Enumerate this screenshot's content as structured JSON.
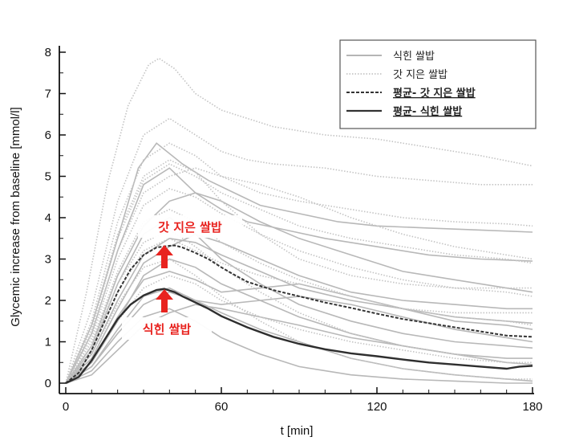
{
  "chart_data": {
    "type": "line",
    "title": "",
    "xlabel": "t [min]",
    "ylabel": "Glycemic increase from baseline [mmol/l]",
    "xlim": [
      0,
      180
    ],
    "ylim": [
      0,
      8
    ],
    "xticks": [
      0,
      60,
      120,
      180
    ],
    "yticks": [
      0,
      1,
      2,
      3,
      4,
      5,
      6,
      7,
      8
    ],
    "legend_position": "top-right",
    "legend": [
      {
        "label": "식힌 쌀밥",
        "style": "solid-gray"
      },
      {
        "label": "갓 지은 쌀밥",
        "style": "dotted-gray"
      },
      {
        "label": "평균- 갓 지은 쌀밥",
        "style": "dashed-dark"
      },
      {
        "label": "평균- 식힌 쌀밥",
        "style": "solid-dark"
      }
    ],
    "series": [
      {
        "name": "평균- 갓 지은 쌀밥",
        "x": [
          0,
          5,
          10,
          15,
          20,
          25,
          30,
          35,
          40,
          42,
          45,
          50,
          55,
          60,
          65,
          70,
          75,
          80,
          90,
          100,
          110,
          120,
          130,
          140,
          150,
          160,
          170,
          180
        ],
        "values": [
          0,
          0.25,
          0.8,
          1.5,
          2.2,
          2.75,
          3.1,
          3.28,
          3.32,
          3.33,
          3.28,
          3.15,
          3.0,
          2.8,
          2.62,
          2.45,
          2.35,
          2.25,
          2.1,
          1.95,
          1.82,
          1.68,
          1.55,
          1.45,
          1.35,
          1.25,
          1.15,
          1.12
        ]
      },
      {
        "name": "평균- 식힌 쌀밥",
        "x": [
          0,
          5,
          10,
          15,
          20,
          25,
          30,
          35,
          38,
          42,
          45,
          50,
          55,
          60,
          70,
          80,
          90,
          100,
          110,
          120,
          130,
          140,
          150,
          160,
          170,
          175,
          180
        ],
        "values": [
          0,
          0.15,
          0.55,
          1.05,
          1.55,
          1.9,
          2.12,
          2.25,
          2.28,
          2.2,
          2.1,
          1.95,
          1.8,
          1.62,
          1.35,
          1.12,
          0.95,
          0.82,
          0.72,
          0.65,
          0.57,
          0.5,
          0.45,
          0.4,
          0.35,
          0.4,
          0.42
        ]
      }
    ],
    "individual_curves": {
      "식힌 쌀밥": [
        {
          "x": [
            0,
            10,
            20,
            28,
            35,
            45,
            55,
            65,
            75,
            90,
            105,
            120,
            140,
            160,
            180
          ],
          "values": [
            0,
            1.4,
            3.5,
            5.2,
            5.8,
            5.3,
            4.9,
            4.6,
            4.3,
            4.1,
            3.9,
            3.8,
            3.75,
            3.7,
            3.65
          ]
        },
        {
          "x": [
            0,
            10,
            20,
            30,
            40,
            50,
            60,
            70,
            85,
            100,
            120,
            140,
            160,
            180
          ],
          "values": [
            0,
            1.2,
            3.2,
            4.8,
            5.2,
            4.6,
            4.2,
            3.9,
            3.7,
            3.5,
            3.3,
            3.1,
            3.0,
            2.95
          ]
        },
        {
          "x": [
            0,
            10,
            20,
            30,
            40,
            50,
            60,
            75,
            90,
            110,
            130,
            150,
            170,
            180
          ],
          "values": [
            0,
            0.9,
            2.6,
            3.8,
            4.4,
            4.6,
            4.4,
            3.9,
            3.5,
            3.1,
            2.7,
            2.5,
            2.3,
            2.2
          ]
        },
        {
          "x": [
            0,
            10,
            20,
            30,
            40,
            50,
            60,
            75,
            90,
            110,
            130,
            150,
            170,
            180
          ],
          "values": [
            0,
            0.7,
            2.0,
            3.1,
            3.5,
            3.4,
            3.1,
            2.7,
            2.3,
            2.0,
            1.8,
            1.5,
            1.4,
            1.3
          ]
        },
        {
          "x": [
            0,
            10,
            20,
            30,
            40,
            50,
            60,
            75,
            90,
            110,
            130,
            150,
            170,
            180
          ],
          "values": [
            0,
            0.5,
            1.5,
            2.6,
            3.0,
            2.8,
            2.4,
            2.0,
            1.6,
            1.2,
            0.9,
            0.7,
            0.5,
            0.45
          ]
        },
        {
          "x": [
            0,
            10,
            20,
            30,
            40,
            50,
            60,
            75,
            90,
            110,
            130,
            150,
            170,
            180
          ],
          "values": [
            0,
            0.4,
            1.3,
            2.1,
            2.3,
            2.0,
            1.7,
            1.3,
            1.0,
            0.6,
            0.35,
            0.2,
            0.1,
            0.05
          ]
        },
        {
          "x": [
            0,
            10,
            20,
            30,
            40,
            50,
            60,
            75,
            90,
            110,
            130,
            150,
            170,
            180
          ],
          "values": [
            0,
            0.3,
            1.0,
            1.6,
            1.8,
            1.5,
            1.1,
            0.7,
            0.4,
            0.2,
            0.1,
            0.05,
            0.0,
            0.0
          ]
        },
        {
          "x": [
            0,
            10,
            20,
            30,
            40,
            50,
            60,
            75,
            90,
            110,
            130,
            150,
            170,
            180
          ],
          "values": [
            0,
            0.6,
            1.8,
            2.9,
            3.3,
            3.6,
            3.4,
            3.0,
            2.6,
            2.2,
            2.0,
            1.9,
            1.8,
            1.8
          ]
        },
        {
          "x": [
            0,
            10,
            20,
            30,
            40,
            50,
            60,
            75,
            90,
            110,
            130,
            150,
            170,
            180
          ],
          "values": [
            0,
            0.8,
            2.4,
            3.6,
            4.0,
            3.6,
            3.0,
            2.4,
            1.9,
            1.5,
            1.2,
            1.0,
            0.9,
            0.85
          ]
        },
        {
          "x": [
            0,
            10,
            20,
            30,
            40,
            50,
            60,
            75,
            90,
            110,
            130,
            150,
            170,
            180
          ],
          "values": [
            0,
            0.2,
            0.8,
            1.4,
            1.7,
            1.9,
            1.8,
            1.6,
            1.4,
            1.1,
            0.9,
            0.7,
            0.6,
            0.6
          ]
        },
        {
          "x": [
            0,
            10,
            20,
            30,
            40,
            50,
            60,
            75,
            90,
            110,
            130,
            150,
            170,
            180
          ],
          "values": [
            0,
            0.5,
            1.6,
            2.5,
            2.7,
            2.5,
            2.2,
            2.3,
            2.4,
            2.1,
            1.8,
            1.6,
            1.5,
            1.45
          ]
        },
        {
          "x": [
            0,
            10,
            20,
            30,
            40,
            50,
            60,
            75,
            90,
            110,
            130,
            150,
            170,
            180
          ],
          "values": [
            0,
            0.4,
            1.2,
            1.9,
            2.2,
            2.0,
            1.9,
            2.0,
            2.1,
            1.9,
            1.6,
            1.3,
            1.1,
            1.0
          ]
        }
      ],
      "갓 지은 쌀밥": [
        {
          "x": [
            0,
            8,
            16,
            24,
            32,
            36,
            42,
            50,
            60,
            70,
            80,
            100,
            120,
            140,
            160,
            180
          ],
          "values": [
            0,
            2.2,
            4.8,
            6.7,
            7.7,
            7.85,
            7.6,
            7.0,
            6.6,
            6.4,
            6.2,
            6.0,
            5.9,
            5.7,
            5.5,
            5.25
          ]
        },
        {
          "x": [
            0,
            10,
            20,
            30,
            40,
            50,
            60,
            70,
            80,
            100,
            120,
            140,
            160,
            180
          ],
          "values": [
            0,
            1.8,
            4.4,
            6.0,
            6.4,
            6.0,
            5.6,
            5.4,
            5.3,
            5.2,
            5.0,
            4.9,
            4.8,
            4.8
          ]
        },
        {
          "x": [
            0,
            10,
            20,
            30,
            40,
            50,
            60,
            75,
            90,
            110,
            130,
            150,
            170,
            180
          ],
          "values": [
            0,
            1.5,
            3.9,
            5.4,
            5.8,
            5.5,
            5.0,
            4.6,
            4.4,
            4.2,
            4.0,
            3.9,
            3.85,
            3.8
          ]
        },
        {
          "x": [
            0,
            10,
            20,
            30,
            40,
            50,
            60,
            75,
            90,
            110,
            130,
            150,
            170,
            180
          ],
          "values": [
            0,
            1.3,
            3.5,
            4.9,
            5.3,
            5.0,
            4.6,
            4.2,
            3.8,
            3.5,
            3.3,
            3.1,
            3.0,
            2.9
          ]
        },
        {
          "x": [
            0,
            10,
            20,
            30,
            40,
            50,
            60,
            75,
            90,
            110,
            130,
            150,
            170,
            180
          ],
          "values": [
            0,
            1.1,
            3.0,
            4.3,
            4.7,
            4.5,
            4.1,
            3.6,
            3.2,
            2.8,
            2.5,
            2.3,
            2.2,
            2.1
          ]
        },
        {
          "x": [
            0,
            10,
            20,
            30,
            40,
            50,
            60,
            75,
            90,
            110,
            130,
            150,
            170,
            180
          ],
          "values": [
            0,
            1.0,
            2.7,
            3.9,
            4.2,
            3.9,
            3.4,
            2.9,
            2.5,
            2.1,
            1.8,
            1.6,
            1.5,
            1.4
          ]
        },
        {
          "x": [
            0,
            10,
            20,
            30,
            40,
            50,
            60,
            75,
            90,
            110,
            130,
            150,
            170,
            180
          ],
          "values": [
            0,
            0.9,
            2.4,
            3.4,
            3.7,
            3.3,
            2.8,
            2.2,
            1.7,
            1.2,
            0.9,
            0.7,
            0.5,
            0.45
          ]
        },
        {
          "x": [
            0,
            10,
            20,
            30,
            40,
            50,
            60,
            75,
            90,
            110,
            130,
            150,
            170,
            180
          ],
          "values": [
            0,
            0.7,
            1.9,
            2.8,
            3.0,
            2.6,
            2.1,
            1.5,
            1.0,
            0.6,
            0.35,
            0.2,
            0.1,
            0.1
          ]
        },
        {
          "x": [
            0,
            10,
            20,
            30,
            40,
            50,
            60,
            75,
            90,
            110,
            130,
            150,
            170,
            180
          ],
          "values": [
            0,
            1.2,
            3.2,
            4.6,
            5.0,
            5.2,
            5.0,
            4.8,
            4.5,
            4.0,
            3.6,
            3.3,
            3.1,
            3.0
          ]
        },
        {
          "x": [
            0,
            10,
            20,
            30,
            40,
            50,
            60,
            75,
            90,
            110,
            130,
            150,
            170,
            180
          ],
          "values": [
            0,
            0.5,
            1.5,
            2.3,
            2.6,
            2.4,
            2.0,
            1.6,
            1.3,
            1.0,
            0.8,
            0.6,
            0.5,
            0.5
          ]
        },
        {
          "x": [
            0,
            10,
            20,
            30,
            40,
            50,
            60,
            75,
            90,
            110,
            130,
            150,
            170,
            180
          ],
          "values": [
            0,
            1.4,
            3.6,
            5.0,
            5.4,
            5.1,
            4.4,
            3.6,
            3.0,
            2.6,
            2.4,
            2.3,
            2.3,
            2.3
          ]
        },
        {
          "x": [
            0,
            10,
            20,
            30,
            40,
            50,
            60,
            75,
            90,
            110,
            130,
            150,
            170,
            180
          ],
          "values": [
            0,
            0.8,
            2.2,
            3.2,
            3.5,
            3.2,
            2.9,
            2.6,
            2.4,
            2.1,
            1.8,
            1.7,
            1.7,
            1.7
          ]
        }
      ]
    },
    "annotations": [
      {
        "text": "갓 지은 쌀밥",
        "x": 42,
        "y": 3.33
      },
      {
        "text": "식힌 쌀밥",
        "x": 38,
        "y": 2.28
      }
    ]
  }
}
